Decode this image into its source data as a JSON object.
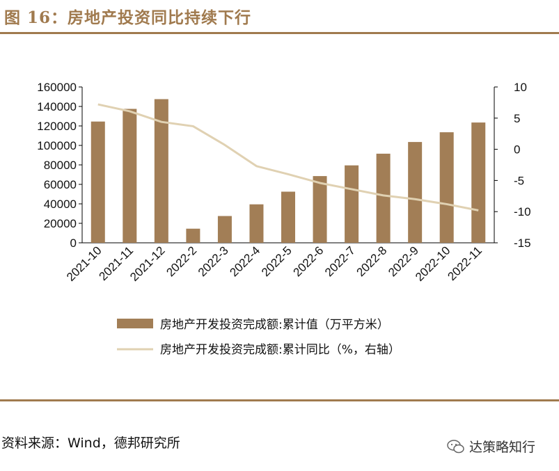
{
  "header": {
    "title": "图 16：房地产投资同比持续下行"
  },
  "chart_data": {
    "type": "bar+line",
    "categories": [
      "2021-10",
      "2021-11",
      "2021-12",
      "2022-2",
      "2022-3",
      "2022-4",
      "2022-5",
      "2022-6",
      "2022-7",
      "2022-8",
      "2022-9",
      "2022-10",
      "2022-11"
    ],
    "series": [
      {
        "name": "房地产开发投资完成额:累计值（万平方米）",
        "type": "bar",
        "axis": "left",
        "values": [
          124500,
          137500,
          147500,
          14500,
          27500,
          39500,
          52500,
          68500,
          79500,
          91500,
          103500,
          113500,
          123500
        ]
      },
      {
        "name": "房地产开发投资完成额:累计同比（%，右轴）",
        "type": "line",
        "axis": "right",
        "values": [
          7.2,
          6.1,
          4.4,
          3.7,
          0.7,
          -2.7,
          -4.0,
          -5.4,
          -6.4,
          -7.4,
          -8.0,
          -8.8,
          -9.8
        ]
      }
    ],
    "left_axis": {
      "ylim": [
        0,
        160000
      ],
      "ticks": [
        "160000",
        "140000",
        "120000",
        "100000",
        "80000",
        "60000",
        "40000",
        "20000",
        "0"
      ]
    },
    "right_axis": {
      "ylim": [
        -15,
        10
      ],
      "ticks": [
        "10",
        "5",
        "0",
        "-5",
        "-10",
        "-15"
      ]
    },
    "colors": {
      "bar": "#a27e56",
      "line": "#e0d1b2",
      "accent": "#a07a4e"
    },
    "legend": [
      "房地产开发投资完成额:累计值（万平方米）",
      "房地产开发投资完成额:累计同比（%，右轴）"
    ],
    "legend_position": "bottom"
  },
  "footer": {
    "source": "资料来源：Wind，德邦研究所",
    "watermark": "达策略知行"
  }
}
